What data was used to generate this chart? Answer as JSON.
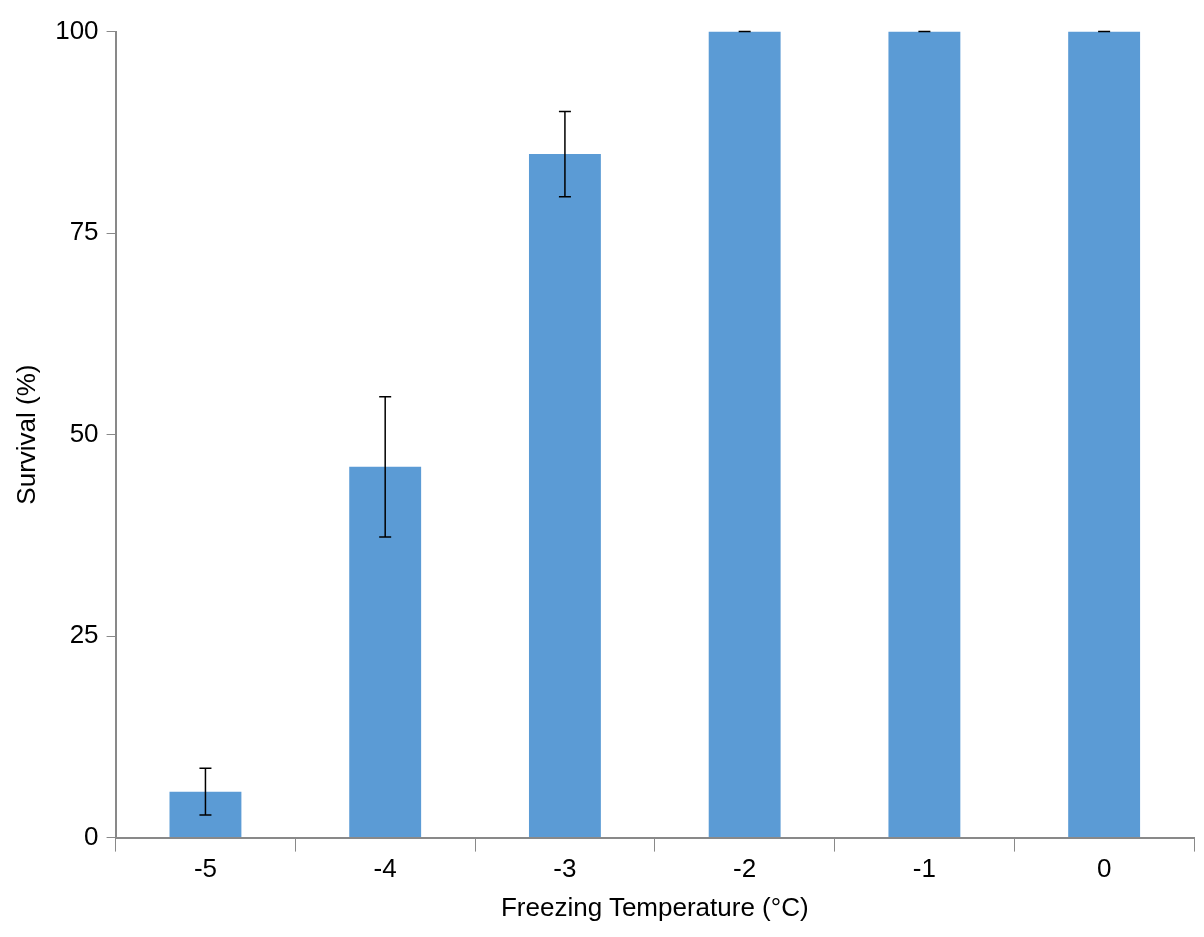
{
  "chart_data": {
    "type": "bar",
    "xlabel": "Freezing Temperature (°C)",
    "ylabel": "Survival (%)",
    "categories": [
      "-5",
      "-4",
      "-3",
      "-2",
      "-1",
      "0"
    ],
    "values": [
      5.7,
      46.0,
      84.8,
      100,
      100,
      100
    ],
    "errors": [
      2.9,
      8.7,
      5.3,
      0,
      0,
      0
    ],
    "color": "#5b9bd5",
    "ylim": [
      0,
      100
    ],
    "yticks": [
      0,
      25,
      50,
      75,
      100
    ],
    "grid": false,
    "legend": false
  }
}
